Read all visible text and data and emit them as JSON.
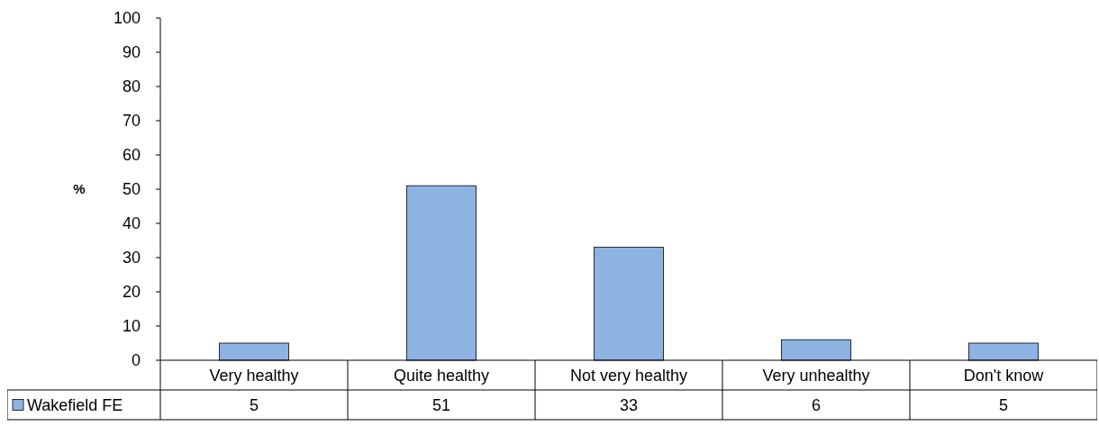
{
  "chart_data": {
    "type": "bar",
    "ylabel": "%",
    "categories": [
      "Very healthy",
      "Quite healthy",
      "Not very healthy",
      "Very unhealthy",
      "Don't know"
    ],
    "series": [
      {
        "name": "Wakefield FE",
        "color": "#8db3e2",
        "values": [
          5,
          51,
          33,
          6,
          5
        ]
      }
    ],
    "ylim": [
      0,
      100
    ],
    "yticks": [
      0,
      10,
      20,
      30,
      40,
      50,
      60,
      70,
      80,
      90,
      100
    ],
    "data_labels": true,
    "legend": "bottom",
    "grid": false
  }
}
